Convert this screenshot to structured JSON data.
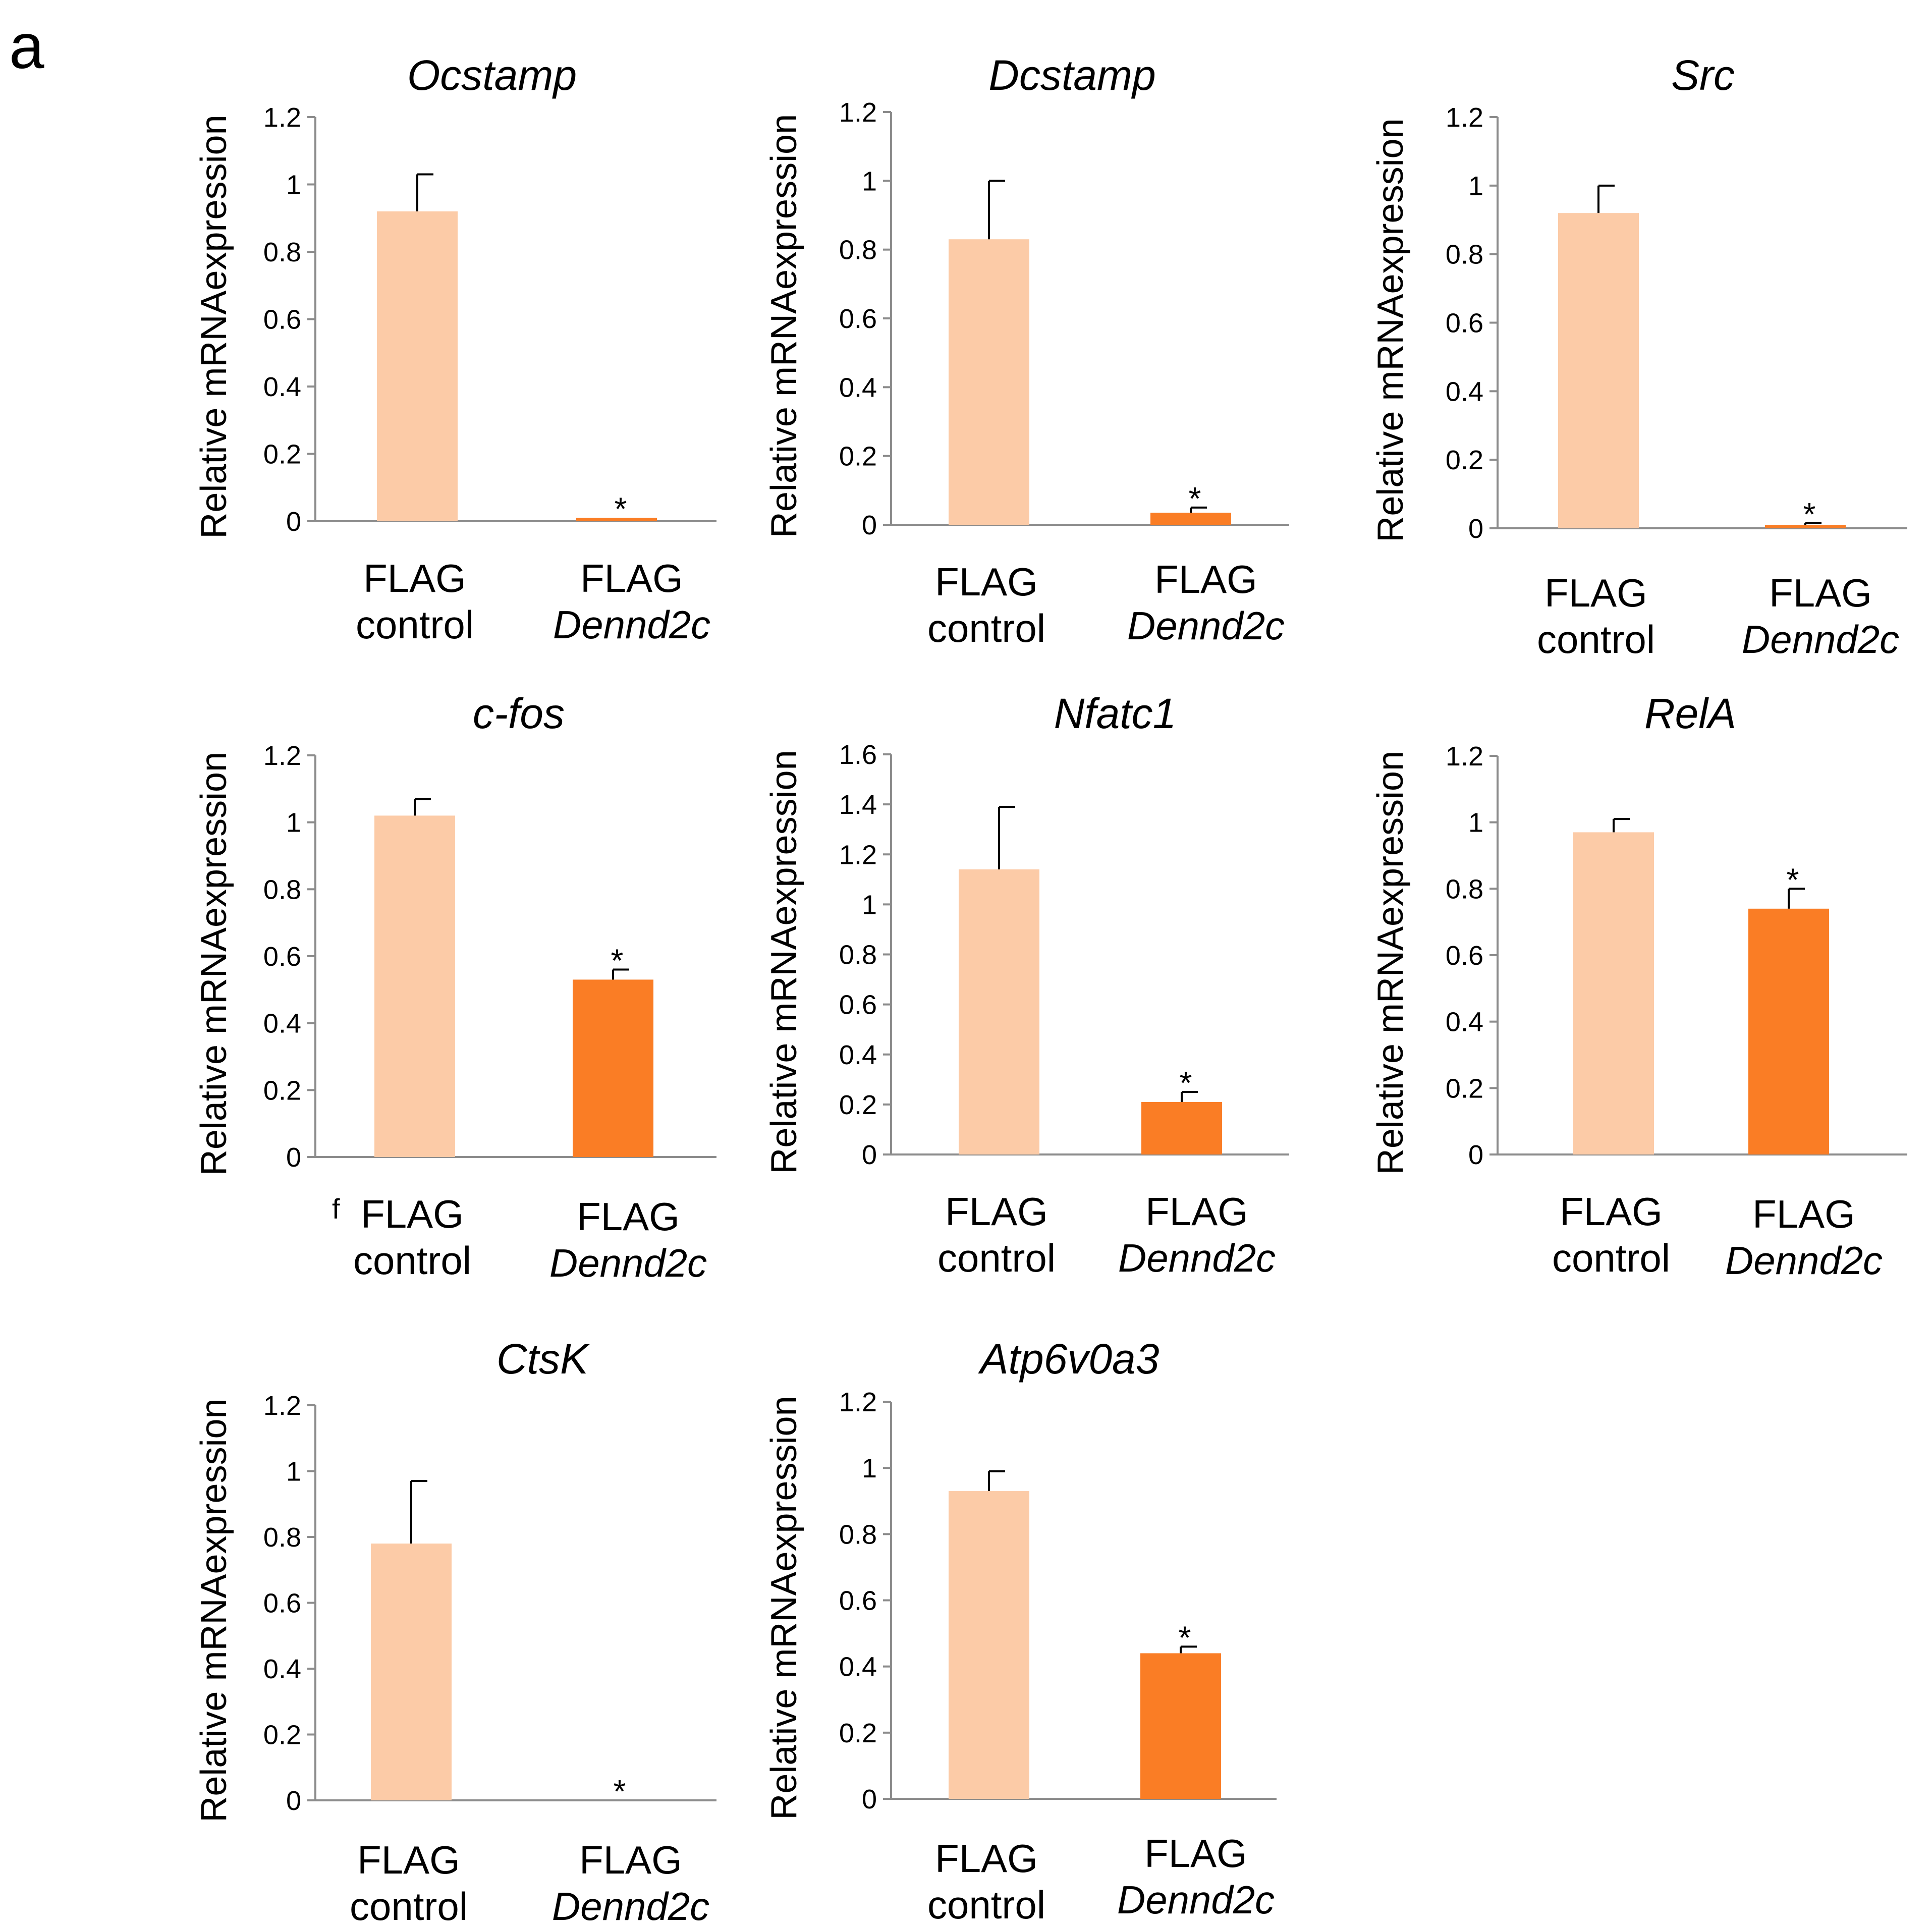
{
  "figure": {
    "panel_label": "a",
    "colors": {
      "control": "#FCCBA7",
      "treatment": "#FA7D25",
      "axis": "#8C8C8C",
      "text": "#000000"
    },
    "stray_mark": "f"
  },
  "chart_data": [
    {
      "type": "bar",
      "title": "Ocstamp",
      "ylabel": "Relative mRNAexpression",
      "categories": [
        {
          "line1": "FLAG",
          "line2": "control"
        },
        {
          "line1": "FLAG",
          "line2": "Dennd2c"
        }
      ],
      "values": [
        0.92,
        0.01
      ],
      "errors": [
        0.11,
        0.0
      ],
      "significance": [
        "",
        "*"
      ],
      "ylim": [
        0,
        1.2
      ],
      "yticks": [
        0,
        0.2,
        0.4,
        0.6,
        0.8,
        1,
        1.2
      ],
      "ytick_labels": [
        "0",
        "0.2",
        "0.4",
        "0.6",
        "0.8",
        "1",
        "1.2"
      ]
    },
    {
      "type": "bar",
      "title": "Dcstamp",
      "ylabel": "Relative mRNAexpression",
      "categories": [
        {
          "line1": "FLAG",
          "line2": "control"
        },
        {
          "line1": "FLAG",
          "line2": "Dennd2c"
        }
      ],
      "values": [
        0.83,
        0.035
      ],
      "errors": [
        0.17,
        0.015
      ],
      "significance": [
        "",
        "*"
      ],
      "ylim": [
        0,
        1.2
      ],
      "yticks": [
        0,
        0.2,
        0.4,
        0.6,
        0.8,
        1,
        1.2
      ],
      "ytick_labels": [
        "0",
        "0.2",
        "0.4",
        "0.6",
        "0.8",
        "1",
        "1.2"
      ]
    },
    {
      "type": "bar",
      "title": "Src",
      "ylabel": "Relative mRNAexpression",
      "categories": [
        {
          "line1": "FLAG",
          "line2": "control"
        },
        {
          "line1": "FLAG",
          "line2": "Dennd2c"
        }
      ],
      "values": [
        0.92,
        0.01
      ],
      "errors": [
        0.08,
        0.005
      ],
      "significance": [
        "",
        "*"
      ],
      "ylim": [
        0,
        1.2
      ],
      "yticks": [
        0,
        0.2,
        0.4,
        0.6,
        0.8,
        1,
        1.2
      ],
      "ytick_labels": [
        "0",
        "0.2",
        "0.4",
        "0.6",
        "0.8",
        "1",
        "1.2"
      ]
    },
    {
      "type": "bar",
      "title": "c-fos",
      "ylabel": "Relative mRNAexpression",
      "categories": [
        {
          "line1": "FLAG",
          "line2": "control"
        },
        {
          "line1": "FLAG",
          "line2": "Dennd2c"
        }
      ],
      "values": [
        1.02,
        0.53
      ],
      "errors": [
        0.05,
        0.03
      ],
      "significance": [
        "",
        "*"
      ],
      "ylim": [
        0,
        1.2
      ],
      "yticks": [
        0,
        0.2,
        0.4,
        0.6,
        0.8,
        1,
        1.2
      ],
      "ytick_labels": [
        "0",
        "0.2",
        "0.4",
        "0.6",
        "0.8",
        "1",
        "1.2"
      ]
    },
    {
      "type": "bar",
      "title": "Nfatc1",
      "ylabel": "Relative mRNAexpression",
      "categories": [
        {
          "line1": "FLAG",
          "line2": "control"
        },
        {
          "line1": "FLAG",
          "line2": "Dennd2c"
        }
      ],
      "values": [
        1.14,
        0.21
      ],
      "errors": [
        0.25,
        0.04
      ],
      "significance": [
        "",
        "*"
      ],
      "ylim": [
        0,
        1.6
      ],
      "yticks": [
        0,
        0.2,
        0.4,
        0.6,
        0.8,
        1,
        1.2,
        1.4,
        1.6
      ],
      "ytick_labels": [
        "0",
        "0.2",
        "0.4",
        "0.6",
        "0.8",
        "1",
        "1.2",
        "1.4",
        "1.6"
      ]
    },
    {
      "type": "bar",
      "title": "RelA",
      "ylabel": "Relative mRNAexpression",
      "categories": [
        {
          "line1": "FLAG",
          "line2": "control"
        },
        {
          "line1": "FLAG",
          "line2": "Dennd2c"
        }
      ],
      "values": [
        0.97,
        0.74
      ],
      "errors": [
        0.04,
        0.06
      ],
      "significance": [
        "",
        "*"
      ],
      "ylim": [
        0,
        1.2
      ],
      "yticks": [
        0,
        0.2,
        0.4,
        0.6,
        0.8,
        1,
        1.2
      ],
      "ytick_labels": [
        "0",
        "0.2",
        "0.4",
        "0.6",
        "0.8",
        "1",
        "1.2"
      ]
    },
    {
      "type": "bar",
      "title": "CtsK",
      "ylabel": "Relative mRNAexpression",
      "categories": [
        {
          "line1": "FLAG",
          "line2": "control"
        },
        {
          "line1": "FLAG",
          "line2": "Dennd2c"
        }
      ],
      "values": [
        0.78,
        0.0
      ],
      "errors": [
        0.19,
        0.0
      ],
      "significance": [
        "",
        "*"
      ],
      "ylim": [
        0,
        1.2
      ],
      "yticks": [
        0,
        0.2,
        0.4,
        0.6,
        0.8,
        1,
        1.2
      ],
      "ytick_labels": [
        "0",
        "0.2",
        "0.4",
        "0.6",
        "0.8",
        "1",
        "1.2"
      ]
    },
    {
      "type": "bar",
      "title": "Atp6v0a3",
      "ylabel": "Relative mRNAexpression",
      "categories": [
        {
          "line1": "FLAG",
          "line2": "control"
        },
        {
          "line1": "FLAG",
          "line2": "Dennd2c"
        }
      ],
      "values": [
        0.93,
        0.44
      ],
      "errors": [
        0.06,
        0.02
      ],
      "significance": [
        "",
        "*"
      ],
      "ylim": [
        0,
        1.2
      ],
      "yticks": [
        0,
        0.2,
        0.4,
        0.6,
        0.8,
        1,
        1.2
      ],
      "ytick_labels": [
        "0",
        "0.2",
        "0.4",
        "0.6",
        "0.8",
        "1",
        "1.2"
      ]
    }
  ]
}
